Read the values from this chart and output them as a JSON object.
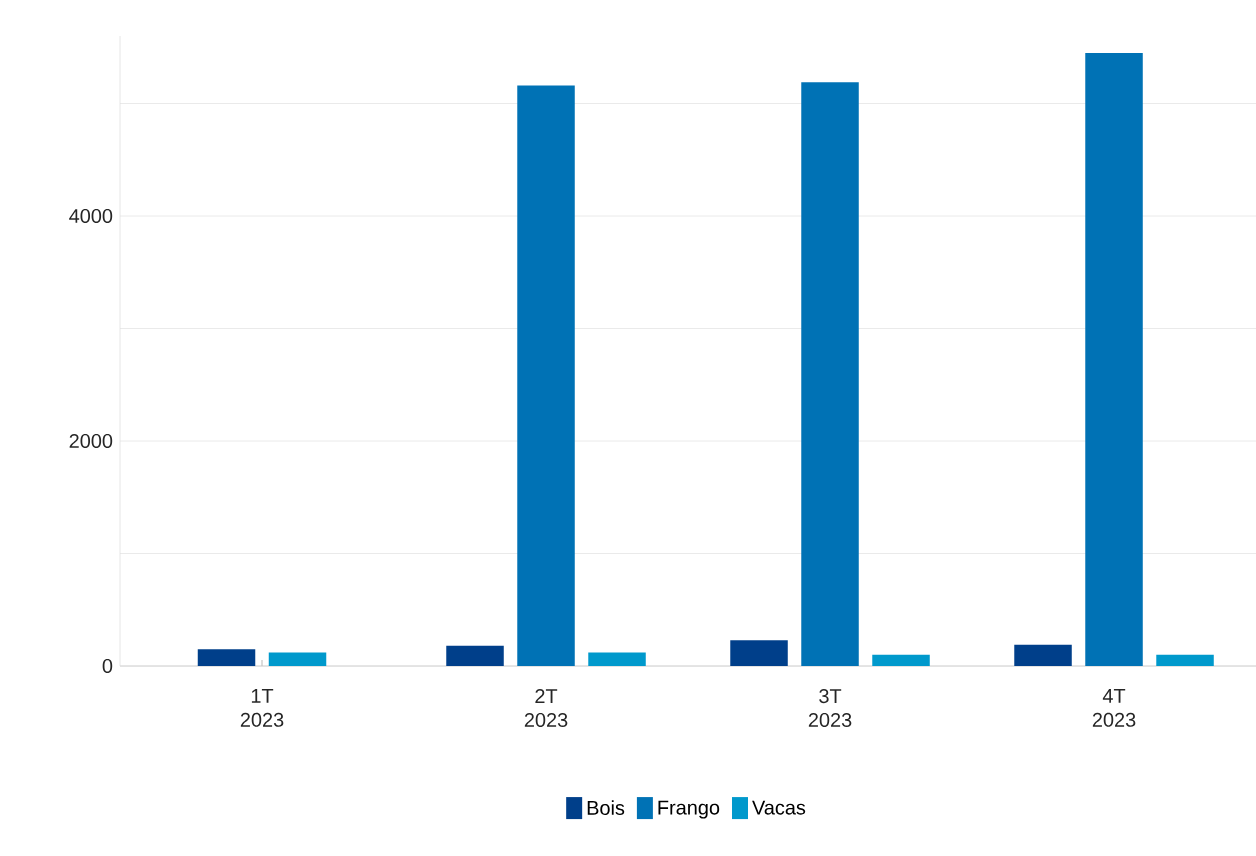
{
  "chart_data": {
    "type": "bar",
    "categories": [
      "1T\n2023",
      "2T\n2023",
      "3T\n2023",
      "4T\n2023"
    ],
    "series": [
      {
        "name": "Bois",
        "color": "#003f8a",
        "values": [
          150,
          180,
          230,
          190
        ]
      },
      {
        "name": "Frango",
        "color": "#0072b5",
        "values": [
          null,
          5160,
          5190,
          5450
        ]
      },
      {
        "name": "Vacas",
        "color": "#0099cc",
        "values": [
          120,
          120,
          100,
          100
        ]
      }
    ],
    "ylim": [
      0,
      5600
    ],
    "yticks": [
      0,
      {
        "value": 1000,
        "label": null
      },
      2000,
      {
        "value": 3000,
        "label": null
      },
      4000,
      {
        "value": 5000,
        "label": null
      }
    ],
    "grid": "y",
    "legend": "bottom"
  }
}
